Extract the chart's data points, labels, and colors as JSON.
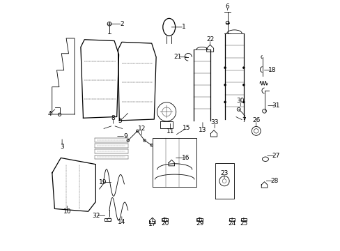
{
  "title": "",
  "background_color": "#ffffff",
  "line_color": "#000000",
  "label_color": "#000000",
  "fig_width": 4.89,
  "fig_height": 3.6,
  "dpi": 100
}
